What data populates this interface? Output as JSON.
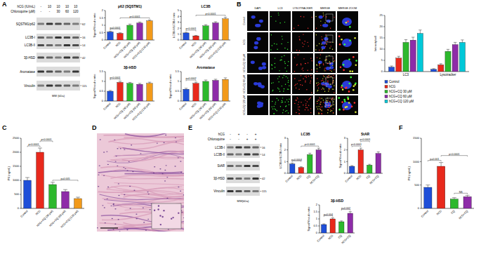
{
  "panel_labels": [
    "A",
    "B",
    "C",
    "D",
    "E",
    "F"
  ],
  "blots": [
    {
      "conditions": [
        {
          "label": "hCG (IU/mL)",
          "values": [
            "-",
            "10",
            "10",
            "10",
            "10"
          ]
        },
        {
          "label": "Chloroquine (µM)",
          "values": [
            "-",
            "-",
            "30",
            "60",
            "120"
          ]
        }
      ],
      "rows": [
        {
          "labels": [
            "SQSTM1/p62"
          ],
          "mw": [
            "62"
          ]
        },
        {
          "labels": [
            "LC3B-I",
            "LC3B-II"
          ],
          "mw": [
            "16",
            "14"
          ]
        },
        {
          "labels": [
            "3β-HSD"
          ],
          "mw": [
            "42"
          ]
        },
        {
          "labels": [
            "Aromatase"
          ],
          "mw": []
        },
        {
          "labels": [
            "Vinculin"
          ],
          "mw": [
            "115"
          ]
        }
      ],
      "mw_label": "MW (kDa)"
    },
    {
      "conditions": [
        {
          "label": "hCG",
          "values": [
            "-",
            "+",
            "-",
            "+"
          ]
        },
        {
          "label": "Chloroquine",
          "values": [
            "-",
            "-",
            "+",
            "+"
          ]
        }
      ],
      "rows": [
        {
          "labels": [
            "LC3B-I",
            "LC3B-II"
          ],
          "mw": [
            "16",
            "14"
          ]
        },
        {
          "labels": [
            "StAR"
          ],
          "mw": []
        },
        {
          "labels": [
            "3β-HSD"
          ],
          "mw": [
            "42"
          ]
        },
        {
          "labels": [
            "Vinculin"
          ],
          "mw": [
            "115"
          ]
        }
      ],
      "mw_label": "MW(kDa)"
    }
  ],
  "images": {
    "columns": [
      "DAPI",
      "LC3",
      "LYSOTRACKER",
      "MERGE",
      "MERGE ZOOM"
    ],
    "rows": [
      "Control",
      "hCG",
      "hCG+CQ 30 µM",
      "hCG+CQ 60 µM",
      "hCG+CQ 120 µM"
    ]
  },
  "chart_data": [
    {
      "type": "bar",
      "title": "p62 (SQSTM1)",
      "y_label": "Signal/Vinculin ratio",
      "categories": [
        "Control",
        "hCG",
        "hCG+CQ (30 µM)",
        "hCG+CQ (60 µM)",
        "hCG+CQ (120 µM)"
      ],
      "values": [
        0.55,
        0.45,
        1.0,
        1.15,
        1.3
      ],
      "errors": [
        0.05,
        0.04,
        0.08,
        0.07,
        0.06
      ],
      "colors": [
        "#1f4fd8",
        "#e8291c",
        "#2db82d",
        "#8e2ca8",
        "#f29a1a"
      ],
      "ylim": [
        0,
        2
      ],
      "yticks": [
        0,
        0.5,
        1,
        1.5,
        2
      ],
      "annotations": [
        {
          "pair": [
            0,
            1
          ],
          "label": "p=0.0001"
        },
        {
          "pair": [
            1,
            4
          ],
          "label": "p<0.0001"
        }
      ]
    },
    {
      "type": "bar",
      "title": "LC3B",
      "y_label": "LC3B-II/LC3B-I ratio",
      "categories": [
        "Control",
        "hCG",
        "hCG+CQ (30 µM)",
        "hCG+CQ (60 µM)",
        "hCG+CQ (120 µM)"
      ],
      "values": [
        1.2,
        0.7,
        2.4,
        2.9,
        3.6
      ],
      "errors": [
        0.1,
        0.08,
        0.2,
        0.2,
        0.25
      ],
      "colors": [
        "#1f4fd8",
        "#e8291c",
        "#2db82d",
        "#8e2ca8",
        "#f29a1a"
      ],
      "ylim": [
        0,
        5
      ],
      "yticks": [
        0,
        1,
        2,
        3,
        4,
        5
      ],
      "annotations": [
        {
          "pair": [
            0,
            1
          ],
          "label": "p<0.0001"
        },
        {
          "pair": [
            1,
            4
          ],
          "label": "p<0.0001"
        }
      ]
    },
    {
      "type": "bar",
      "title": "3β-HSD",
      "y_label": "Signal/Vinculin ratio",
      "categories": [
        "Control",
        "hCG",
        "hCG+CQ (30 µM)",
        "hCG+CQ (60 µM)",
        "hCG+CQ (120 µM)"
      ],
      "values": [
        0.5,
        0.95,
        0.9,
        0.85,
        0.9
      ],
      "errors": [
        0.04,
        0.06,
        0.05,
        0.05,
        0.06
      ],
      "colors": [
        "#1f4fd8",
        "#e8291c",
        "#2db82d",
        "#8e2ca8",
        "#f29a1a"
      ],
      "ylim": [
        0,
        1.5
      ],
      "yticks": [
        0,
        0.5,
        1,
        1.5
      ],
      "annotations": [
        {
          "pair": [
            0,
            1
          ],
          "label": "p<0.0001"
        }
      ]
    },
    {
      "type": "bar",
      "title": "Aromatase",
      "y_label": "Signal/Vinculin ratio",
      "categories": [
        "Control",
        "hCG",
        "hCG+CQ (30 µM)",
        "hCG+CQ (60 µM)",
        "hCG+CQ (120 µM)"
      ],
      "values": [
        0.6,
        0.9,
        1.0,
        1.05,
        1.1
      ],
      "errors": [
        0.05,
        0.06,
        0.07,
        0.06,
        0.08
      ],
      "colors": [
        "#1f4fd8",
        "#e8291c",
        "#2db82d",
        "#8e2ca8",
        "#f29a1a"
      ],
      "ylim": [
        0,
        1.5
      ],
      "yticks": [
        0,
        0.5,
        1,
        1.5
      ],
      "annotations": [
        {
          "pair": [
            0,
            1
          ],
          "label": "p=0.0002"
        }
      ]
    },
    {
      "type": "bar",
      "y_label": "Intensity/cell",
      "categories": [
        "LC3",
        "Lysotracker"
      ],
      "series": [
        {
          "name": "Control",
          "color": "#1f4fd8",
          "values": [
            2,
            1
          ],
          "errors": [
            0.5,
            0.3
          ]
        },
        {
          "name": "hCG",
          "color": "#e8291c",
          "values": [
            6,
            3
          ],
          "errors": [
            0.8,
            0.5
          ]
        },
        {
          "name": "hCG+CQ 30 µM",
          "color": "#2db82d",
          "values": [
            13,
            9
          ],
          "errors": [
            1.2,
            0.9
          ]
        },
        {
          "name": "hCG+CQ 60 µM",
          "color": "#8e2ca8",
          "values": [
            14,
            12
          ],
          "errors": [
            1.3,
            1.0
          ]
        },
        {
          "name": "hCG+CQ 120 µM",
          "color": "#00c8d8",
          "values": [
            17,
            13
          ],
          "errors": [
            1.5,
            1.1
          ]
        }
      ],
      "legend": "bottom",
      "ylim": [
        0,
        25
      ],
      "yticks": [
        0,
        5,
        10,
        15,
        20,
        25
      ]
    },
    {
      "type": "bar",
      "y_label": "P4 (ng/mL)",
      "categories": [
        "Control",
        "hCG",
        "hCG+CQ (30 µM)",
        "hCG+CQ (60 µM)",
        "hCG+CQ (120 µM)"
      ],
      "values": [
        1000,
        2000,
        850,
        600,
        350
      ],
      "errors": [
        100,
        150,
        80,
        70,
        50
      ],
      "colors": [
        "#1f4fd8",
        "#e8291c",
        "#2db82d",
        "#8e2ca8",
        "#f29a1a"
      ],
      "ylim": [
        0,
        2500
      ],
      "yticks": [
        0,
        500,
        1000,
        1500,
        2000,
        2500
      ],
      "annotations": [
        {
          "pair": [
            2,
            4
          ],
          "label": "p=0.005"
        },
        {
          "pair": [
            0,
            1
          ],
          "label": "p<0.0001"
        },
        {
          "pair": [
            1,
            2
          ],
          "label": "p<0.0001"
        }
      ]
    },
    {
      "type": "bar",
      "title": "LC3B",
      "y_label": "LC3B-II/LC3B-I ratio",
      "categories": [
        "Control",
        "hCG",
        "CQ",
        "hCG+CQ"
      ],
      "values": [
        0.8,
        0.5,
        1.6,
        2.0
      ],
      "errors": [
        0.08,
        0.06,
        0.12,
        0.15
      ],
      "colors": [
        "#1f4fd8",
        "#e8291c",
        "#2db82d",
        "#8e2ca8"
      ],
      "ylim": [
        0,
        3
      ],
      "yticks": [
        0,
        1,
        2,
        3
      ],
      "annotations": [
        {
          "pair": [
            0,
            1
          ],
          "label": "p=0.0004"
        },
        {
          "pair": [
            1,
            3
          ],
          "label": "p<0.0001"
        }
      ]
    },
    {
      "type": "bar",
      "title": "StAR",
      "y_label": "Signal/Vinculin ratio",
      "categories": [
        "Control",
        "hCG",
        "CQ",
        "hCG+CQ"
      ],
      "values": [
        0.6,
        2.0,
        0.7,
        1.7
      ],
      "errors": [
        0.06,
        0.15,
        0.07,
        0.14
      ],
      "colors": [
        "#1f4fd8",
        "#e8291c",
        "#2db82d",
        "#8e2ca8"
      ],
      "ylim": [
        0,
        3
      ],
      "yticks": [
        0,
        1,
        2,
        3
      ],
      "annotations": [
        {
          "pair": [
            0,
            1
          ],
          "label": "p<0.0001"
        },
        {
          "pair": [
            1,
            2
          ],
          "label": "p<0.0001"
        }
      ]
    },
    {
      "type": "bar",
      "title": "3β-HSD",
      "y_label": "Signal/Vinculin ratio",
      "categories": [
        "Control",
        "hCG",
        "CQ",
        "hCG+CQ"
      ],
      "values": [
        0.6,
        1.0,
        0.8,
        1.4
      ],
      "errors": [
        0.05,
        0.08,
        0.06,
        0.12
      ],
      "colors": [
        "#1f4fd8",
        "#e8291c",
        "#2db82d",
        "#8e2ca8"
      ],
      "ylim": [
        0,
        2
      ],
      "yticks": [
        0,
        0.5,
        1,
        1.5,
        2
      ],
      "annotations": [
        {
          "pair": [
            0,
            1
          ],
          "label": "p=0.004"
        },
        {
          "pair": [
            2,
            3
          ],
          "label": "p=0.002"
        }
      ]
    },
    {
      "type": "bar",
      "y_label": "P4 (ng/mL)",
      "categories": [
        "Control",
        "hCG",
        "CQ",
        "hCG+CQ"
      ],
      "values": [
        450,
        900,
        200,
        250
      ],
      "errors": [
        50,
        80,
        30,
        30
      ],
      "colors": [
        "#1f4fd8",
        "#e8291c",
        "#2db82d",
        "#8e2ca8"
      ],
      "ylim": [
        0,
        1500
      ],
      "yticks": [
        0,
        500,
        1000,
        1500
      ],
      "annotations": [
        {
          "pair": [
            2,
            3
          ],
          "label": "NS"
        },
        {
          "pair": [
            0,
            1
          ],
          "label": "p=0.001"
        },
        {
          "pair": [
            1,
            3
          ],
          "label": "p<0.0001"
        }
      ]
    }
  ]
}
